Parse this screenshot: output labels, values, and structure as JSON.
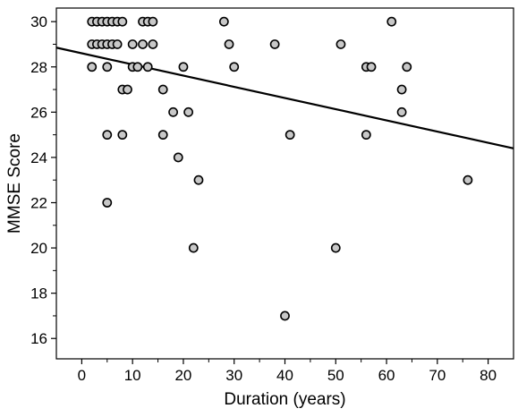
{
  "chart_data": {
    "type": "scatter",
    "title": "",
    "xlabel": "Duration (years)",
    "ylabel": "MMSE Score",
    "xlim": [
      -5,
      85
    ],
    "ylim": [
      15.1,
      30.6
    ],
    "xticks": [
      0,
      10,
      20,
      30,
      40,
      50,
      60,
      70,
      80
    ],
    "yticks": [
      16,
      18,
      20,
      22,
      24,
      26,
      28,
      30
    ],
    "grid": false,
    "legend": "none",
    "marker_fill": "#c8c8c8",
    "marker_edge": "#000000",
    "line_color": "#000000",
    "points": [
      {
        "x": 2,
        "y": 30
      },
      {
        "x": 3,
        "y": 30
      },
      {
        "x": 4,
        "y": 30
      },
      {
        "x": 5,
        "y": 30
      },
      {
        "x": 6,
        "y": 30
      },
      {
        "x": 7,
        "y": 30
      },
      {
        "x": 8,
        "y": 30
      },
      {
        "x": 12,
        "y": 30
      },
      {
        "x": 13,
        "y": 30
      },
      {
        "x": 14,
        "y": 30
      },
      {
        "x": 28,
        "y": 30
      },
      {
        "x": 61,
        "y": 30
      },
      {
        "x": 2,
        "y": 29
      },
      {
        "x": 3,
        "y": 29
      },
      {
        "x": 4,
        "y": 29
      },
      {
        "x": 5,
        "y": 29
      },
      {
        "x": 6,
        "y": 29
      },
      {
        "x": 7,
        "y": 29
      },
      {
        "x": 10,
        "y": 29
      },
      {
        "x": 12,
        "y": 29
      },
      {
        "x": 14,
        "y": 29
      },
      {
        "x": 29,
        "y": 29
      },
      {
        "x": 38,
        "y": 29
      },
      {
        "x": 51,
        "y": 29
      },
      {
        "x": 2,
        "y": 28
      },
      {
        "x": 5,
        "y": 28
      },
      {
        "x": 10,
        "y": 28
      },
      {
        "x": 11,
        "y": 28
      },
      {
        "x": 13,
        "y": 28
      },
      {
        "x": 20,
        "y": 28
      },
      {
        "x": 30,
        "y": 28
      },
      {
        "x": 56,
        "y": 28
      },
      {
        "x": 57,
        "y": 28
      },
      {
        "x": 64,
        "y": 28
      },
      {
        "x": 8,
        "y": 27
      },
      {
        "x": 9,
        "y": 27
      },
      {
        "x": 16,
        "y": 27
      },
      {
        "x": 63,
        "y": 27
      },
      {
        "x": 18,
        "y": 26
      },
      {
        "x": 21,
        "y": 26
      },
      {
        "x": 63,
        "y": 26
      },
      {
        "x": 5,
        "y": 25
      },
      {
        "x": 8,
        "y": 25
      },
      {
        "x": 16,
        "y": 25
      },
      {
        "x": 41,
        "y": 25
      },
      {
        "x": 56,
        "y": 25
      },
      {
        "x": 19,
        "y": 24
      },
      {
        "x": 23,
        "y": 23
      },
      {
        "x": 76,
        "y": 23
      },
      {
        "x": 5,
        "y": 22
      },
      {
        "x": 22,
        "y": 20
      },
      {
        "x": 50,
        "y": 20
      },
      {
        "x": 40,
        "y": 17
      }
    ],
    "fit_line": {
      "x": [
        -5,
        85
      ],
      "y": [
        28.85,
        24.4
      ]
    }
  }
}
